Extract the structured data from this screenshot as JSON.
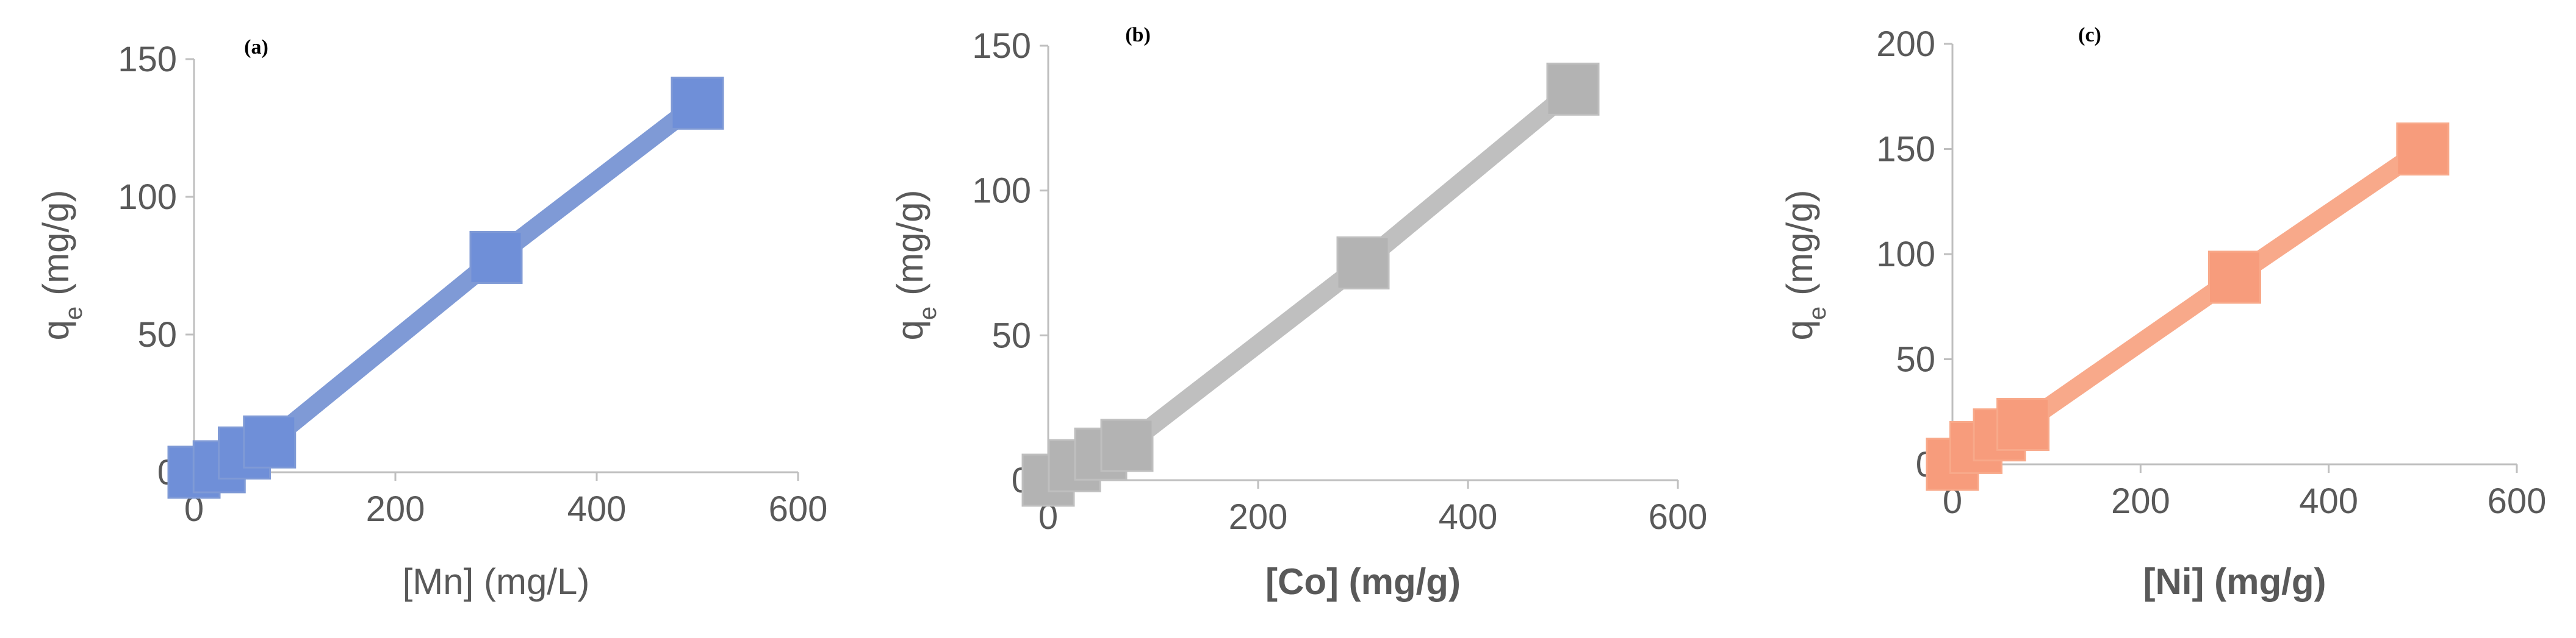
{
  "chart_data": [
    {
      "type": "line",
      "panel_label": "(a)",
      "title": "",
      "xlabel": "[Mn] (mg/L)",
      "xlabel_bold": false,
      "ylabel": "q",
      "ylabel_sub": "e",
      "ylabel_unit": "(mg/g)",
      "xlim": [
        0,
        600
      ],
      "ylim": [
        0,
        150
      ],
      "xticks": [
        0,
        200,
        400,
        600
      ],
      "yticks": [
        0,
        50,
        100,
        150
      ],
      "color": "#7f9ad6",
      "marker_color": "#6f8fd8",
      "series": [
        {
          "name": "Mn",
          "x": [
            0,
            25,
            50,
            75,
            300,
            500
          ],
          "y": [
            0,
            2,
            7,
            11,
            78,
            134
          ]
        }
      ]
    },
    {
      "type": "line",
      "panel_label": "(b)",
      "title": "",
      "xlabel": "[Co] (mg/g)",
      "xlabel_bold": true,
      "ylabel": "q",
      "ylabel_sub": "e",
      "ylabel_unit": "(mg/g)",
      "xlim": [
        0,
        600
      ],
      "ylim": [
        0,
        150
      ],
      "xticks": [
        0,
        200,
        400,
        600
      ],
      "yticks": [
        0,
        50,
        100,
        150
      ],
      "color": "#bfbfbf",
      "marker_color": "#b3b3b3",
      "series": [
        {
          "name": "Co",
          "x": [
            0,
            25,
            50,
            75,
            300,
            500
          ],
          "y": [
            0,
            5,
            9,
            12,
            75,
            135
          ]
        }
      ]
    },
    {
      "type": "line",
      "panel_label": "(c)",
      "title": "",
      "xlabel": "[Ni] (mg/g)",
      "xlabel_bold": true,
      "ylabel": "q",
      "ylabel_sub": "e",
      "ylabel_unit": "(mg/g)",
      "xlim": [
        0,
        600
      ],
      "ylim": [
        0,
        200
      ],
      "xticks": [
        0,
        200,
        400,
        600
      ],
      "yticks": [
        0,
        50,
        100,
        150,
        200
      ],
      "color": "#f8a98a",
      "marker_color": "#f79c7c",
      "series": [
        {
          "name": "Ni",
          "x": [
            0,
            25,
            50,
            75,
            300,
            500
          ],
          "y": [
            0,
            8,
            14,
            19,
            89,
            150
          ]
        }
      ]
    }
  ]
}
